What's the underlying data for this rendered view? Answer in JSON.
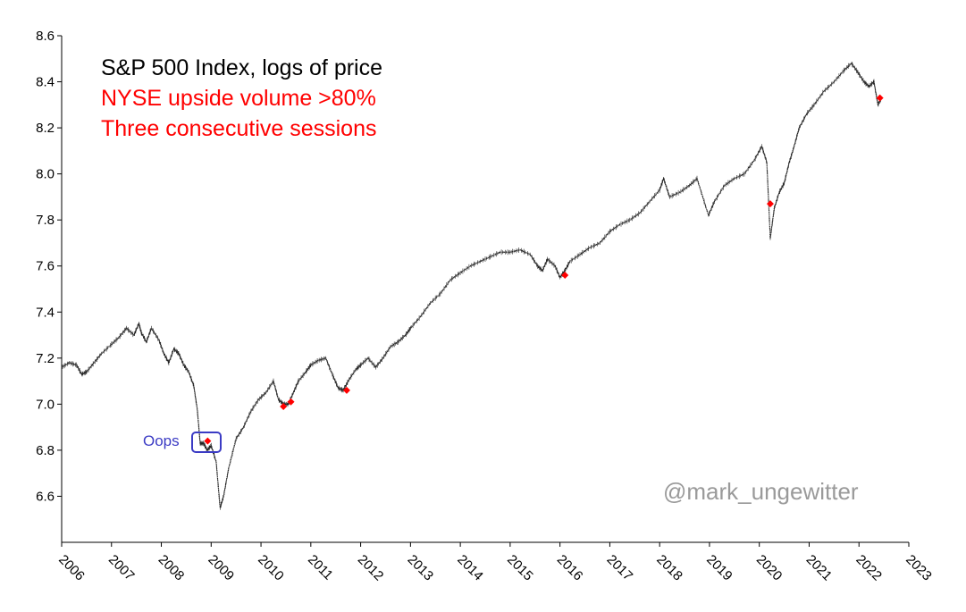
{
  "chart_data": {
    "type": "line",
    "title_lines": [
      {
        "text": "S&P 500 Index, logs of price",
        "color": "#000000"
      },
      {
        "text": "NYSE upside volume >80%",
        "color": "#ff0000"
      },
      {
        "text": "Three consecutive sessions",
        "color": "#ff0000"
      }
    ],
    "xlabel": "",
    "ylabel": "",
    "xlim": [
      2006.0,
      2023.0
    ],
    "ylim": [
      6.4,
      8.6
    ],
    "y_ticks": [
      "6.6",
      "6.8",
      "7.0",
      "7.2",
      "7.4",
      "7.6",
      "7.8",
      "8.0",
      "8.2",
      "8.4",
      "8.6"
    ],
    "x_ticks": [
      "2006",
      "2007",
      "2008",
      "2009",
      "2010",
      "2011",
      "2012",
      "2013",
      "2014",
      "2015",
      "2016",
      "2017",
      "2018",
      "2019",
      "2020",
      "2021",
      "2022",
      "2023"
    ],
    "grid": false,
    "line_color": "#222222",
    "series": [
      {
        "x": [
          2006.0,
          2006.15,
          2006.3,
          2006.4,
          2006.5,
          2006.65,
          2006.8,
          2007.0,
          2007.15,
          2007.3,
          2007.45,
          2007.55,
          2007.6,
          2007.7,
          2007.8,
          2007.95,
          2008.05,
          2008.15,
          2008.25,
          2008.35,
          2008.45,
          2008.55,
          2008.65,
          2008.72,
          2008.78,
          2008.85,
          2008.92,
          2009.0,
          2009.1,
          2009.18,
          2009.25,
          2009.35,
          2009.5,
          2009.65,
          2009.8,
          2009.95,
          2010.1,
          2010.25,
          2010.35,
          2010.45,
          2010.55,
          2010.65,
          2010.75,
          2010.9,
          2011.0,
          2011.15,
          2011.3,
          2011.45,
          2011.55,
          2011.65,
          2011.75,
          2011.9,
          2012.0,
          2012.15,
          2012.3,
          2012.45,
          2012.6,
          2012.75,
          2012.9,
          2013.0,
          2013.2,
          2013.4,
          2013.6,
          2013.8,
          2014.0,
          2014.2,
          2014.4,
          2014.6,
          2014.8,
          2015.0,
          2015.2,
          2015.4,
          2015.55,
          2015.65,
          2015.75,
          2015.9,
          2016.0,
          2016.1,
          2016.2,
          2016.4,
          2016.6,
          2016.8,
          2017.0,
          2017.2,
          2017.4,
          2017.6,
          2017.8,
          2018.0,
          2018.08,
          2018.2,
          2018.4,
          2018.6,
          2018.75,
          2018.98,
          2019.1,
          2019.3,
          2019.5,
          2019.7,
          2019.9,
          2020.05,
          2020.15,
          2020.22,
          2020.3,
          2020.4,
          2020.5,
          2020.6,
          2020.7,
          2020.8,
          2020.95,
          2021.1,
          2021.3,
          2021.5,
          2021.7,
          2021.85,
          2021.98,
          2022.1,
          2022.2,
          2022.3,
          2022.38,
          2022.45
        ],
        "y": [
          7.16,
          7.18,
          7.17,
          7.13,
          7.14,
          7.18,
          7.22,
          7.26,
          7.29,
          7.33,
          7.3,
          7.35,
          7.31,
          7.27,
          7.33,
          7.28,
          7.22,
          7.18,
          7.24,
          7.22,
          7.17,
          7.14,
          7.08,
          6.98,
          6.83,
          6.83,
          6.8,
          6.82,
          6.75,
          6.55,
          6.6,
          6.72,
          6.85,
          6.9,
          6.97,
          7.02,
          7.05,
          7.1,
          7.02,
          7.0,
          7.0,
          7.05,
          7.1,
          7.14,
          7.17,
          7.19,
          7.2,
          7.12,
          7.07,
          7.06,
          7.1,
          7.15,
          7.17,
          7.2,
          7.16,
          7.2,
          7.25,
          7.27,
          7.3,
          7.33,
          7.38,
          7.44,
          7.48,
          7.54,
          7.57,
          7.6,
          7.62,
          7.64,
          7.66,
          7.66,
          7.67,
          7.65,
          7.6,
          7.58,
          7.63,
          7.6,
          7.55,
          7.58,
          7.62,
          7.65,
          7.68,
          7.7,
          7.75,
          7.78,
          7.8,
          7.83,
          7.88,
          7.93,
          7.98,
          7.9,
          7.92,
          7.95,
          7.98,
          7.82,
          7.88,
          7.95,
          7.98,
          8.0,
          8.06,
          8.12,
          8.05,
          7.72,
          7.85,
          7.92,
          7.96,
          8.05,
          8.12,
          8.2,
          8.26,
          8.3,
          8.36,
          8.4,
          8.45,
          8.48,
          8.44,
          8.4,
          8.38,
          8.4,
          8.3,
          8.33
        ]
      }
    ],
    "markers": {
      "color": "#ff0000",
      "points": [
        {
          "x": 2008.93,
          "y": 6.84
        },
        {
          "x": 2010.45,
          "y": 6.99
        },
        {
          "x": 2010.6,
          "y": 7.01
        },
        {
          "x": 2011.72,
          "y": 7.06
        },
        {
          "x": 2016.1,
          "y": 7.56
        },
        {
          "x": 2020.22,
          "y": 7.87
        },
        {
          "x": 2022.42,
          "y": 8.33
        }
      ]
    },
    "annotation": {
      "text": "Oops",
      "color": "#3b3bc4"
    },
    "watermark": "@mark_ungewitter"
  }
}
